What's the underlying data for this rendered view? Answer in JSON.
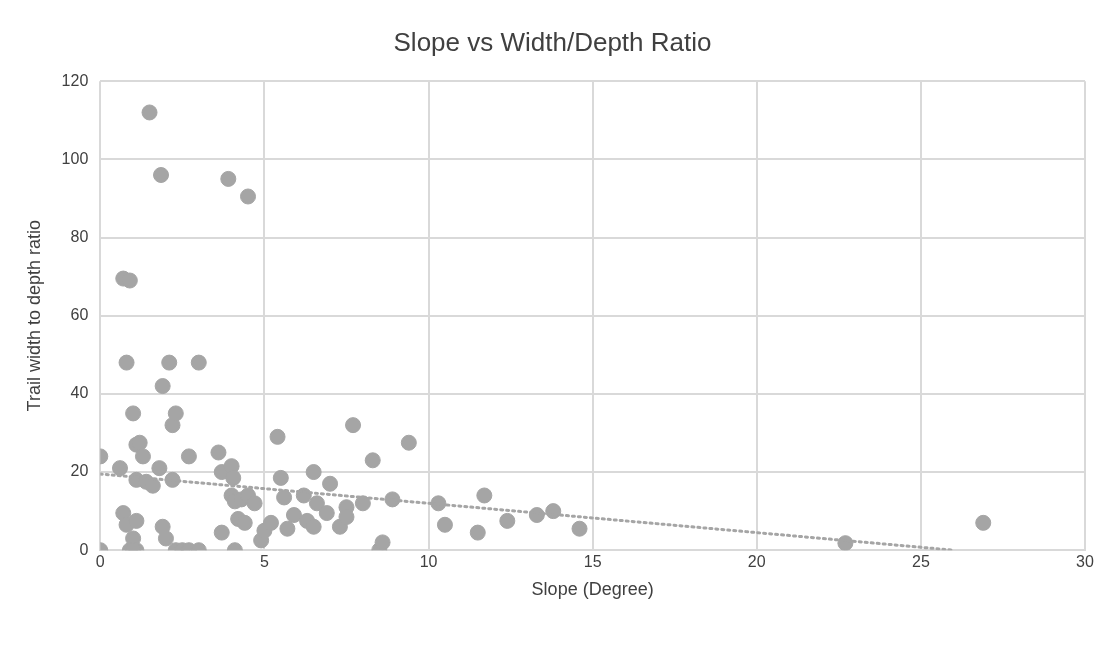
{
  "chart_data": {
    "type": "scatter",
    "title": "Slope vs Width/Depth Ratio",
    "xlabel": "Slope (Degree)",
    "ylabel": "Trail width to depth ratio",
    "xlim": [
      0,
      30
    ],
    "xticks": [
      0,
      5,
      10,
      15,
      20,
      25,
      30
    ],
    "ylim": [
      0,
      120
    ],
    "yticks": [
      0,
      20,
      40,
      60,
      80,
      100,
      120
    ],
    "grid": true,
    "marker": "circle",
    "series": [
      {
        "color": "#a5a5a5",
        "x": [
          0,
          0,
          0.6,
          0.7,
          0.9,
          0.8,
          0.7,
          0.8,
          0.9,
          1.0,
          1.1,
          1.2,
          1.3,
          1.1,
          1.4,
          1.6,
          1.8,
          1.0,
          1.1,
          1.1,
          1.0,
          1.5,
          1.85,
          1.9,
          2.1,
          2.2,
          2.3,
          2.2,
          1.9,
          2.0,
          2.3,
          2.5,
          2.7,
          2.7,
          3.0,
          3.0,
          3.6,
          3.7,
          3.7,
          3.9,
          4.0,
          4.0,
          4.05,
          4.1,
          4.1,
          4.2,
          4.3,
          4.5,
          4.5,
          4.4,
          4.7,
          4.9,
          5.0,
          5.2,
          5.4,
          5.5,
          5.6,
          5.7,
          5.9,
          6.2,
          6.3,
          6.5,
          6.6,
          6.5,
          6.9,
          7.0,
          7.3,
          7.5,
          7.5,
          7.7,
          8.0,
          8.3,
          8.5,
          8.6,
          8.9,
          9.4,
          10.3,
          10.5,
          11.5,
          11.7,
          12.4,
          13.3,
          13.8,
          14.6,
          22.7,
          26.9
        ],
        "values": [
          24,
          0,
          21,
          69.5,
          69,
          48,
          9.5,
          6.5,
          0,
          35,
          27,
          27.5,
          24,
          18,
          17.5,
          16.5,
          21,
          3,
          7.5,
          0,
          0,
          112,
          96,
          42,
          48,
          32,
          35,
          18,
          6,
          3,
          0,
          0,
          0,
          24,
          48,
          0,
          25,
          20,
          4.5,
          95,
          14,
          21.5,
          18.5,
          12.5,
          0,
          8,
          13,
          14,
          90.5,
          7,
          12,
          2.5,
          5,
          7,
          29,
          18.5,
          13.5,
          5.5,
          9,
          14,
          7.5,
          20,
          12,
          6,
          9.5,
          17,
          6,
          11,
          8.5,
          32,
          12,
          23,
          0,
          2,
          13,
          27.5,
          12,
          6.5,
          4.5,
          14,
          7.5,
          9,
          10,
          5.5,
          1.8,
          7
        ]
      },
      {
        "type": "line",
        "color": "#a5a5a5",
        "line_style": "dotted",
        "marker": "none",
        "x": [
          0,
          26
        ],
        "values": [
          19.5,
          0
        ]
      }
    ]
  }
}
